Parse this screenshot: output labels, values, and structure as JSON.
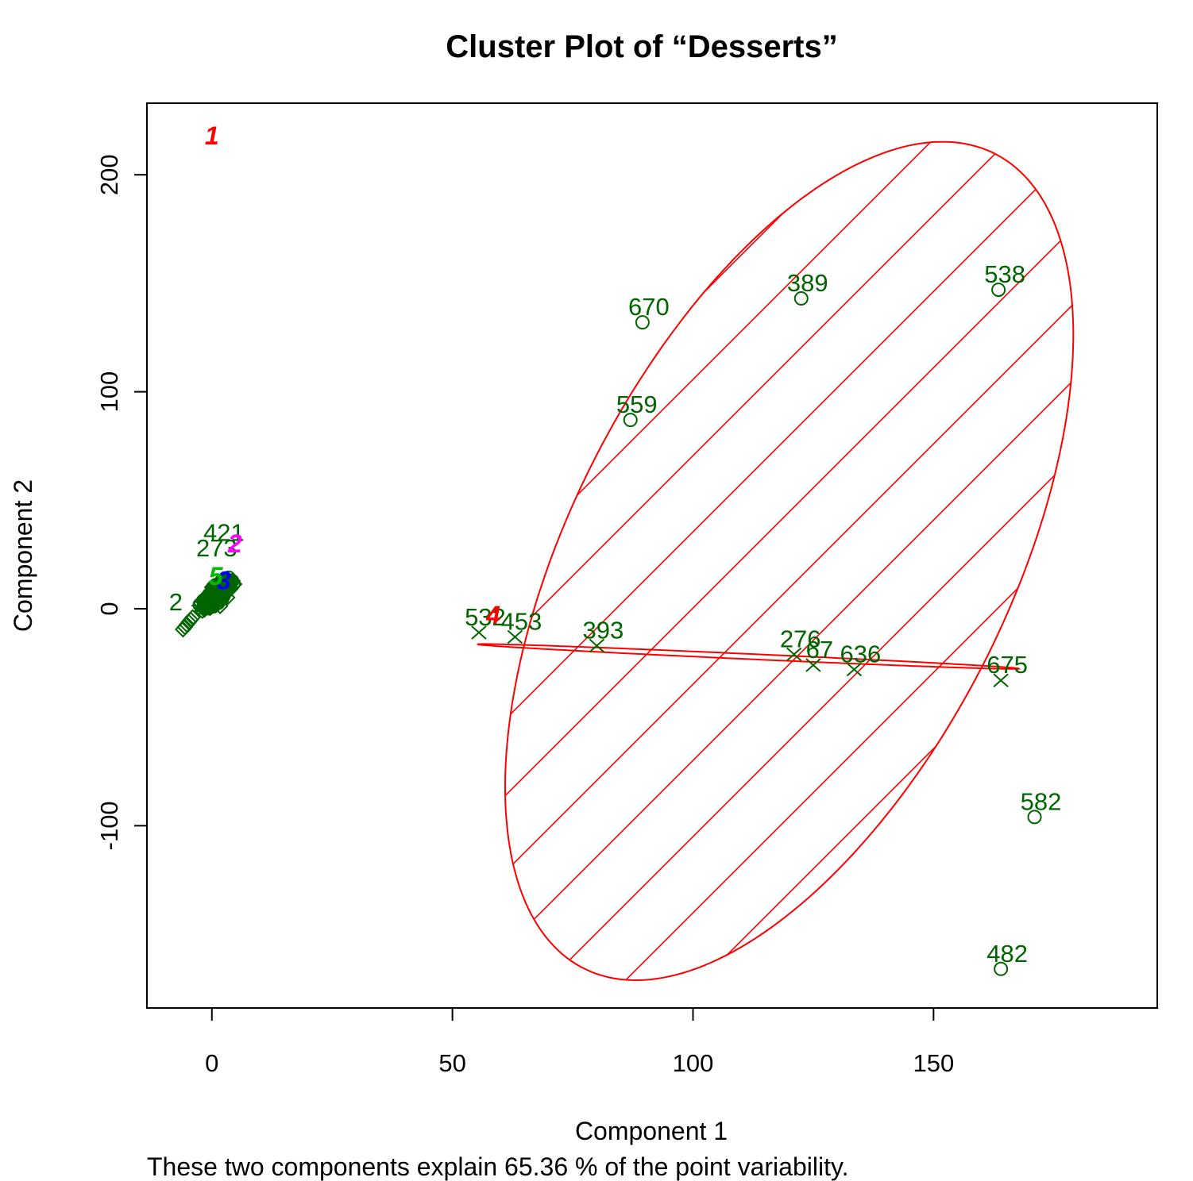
{
  "chart_data": {
    "type": "scatter",
    "title": "Cluster Plot of “Desserts”",
    "xlabel": "Component 1",
    "ylabel": "Component 2",
    "subtitle": "These two components explain 65.36 % of the point variability.",
    "xlim": [
      -13.5,
      196.5
    ],
    "ylim": [
      -184,
      233
    ],
    "xticks": [
      0,
      50,
      100,
      150
    ],
    "yticks": [
      -100,
      0,
      100,
      200
    ],
    "colors": {
      "points": "#006400",
      "cluster1": "#ff0000",
      "cluster2": "#ff00ff",
      "cluster3": "#0000ff",
      "cluster4": "#ff0000",
      "cluster5": "#00bb00",
      "axes": "#000000"
    },
    "points": [
      {
        "label": "670",
        "x": 89.5,
        "y": 132,
        "marker": "circle"
      },
      {
        "label": "389",
        "x": 122.5,
        "y": 143,
        "marker": "circle"
      },
      {
        "label": "538",
        "x": 163.5,
        "y": 147,
        "marker": "circle"
      },
      {
        "label": "559",
        "x": 87,
        "y": 87,
        "marker": "circle"
      },
      {
        "label": "582",
        "x": 171,
        "y": -96,
        "marker": "circle"
      },
      {
        "label": "482",
        "x": 164,
        "y": -166,
        "marker": "circle"
      },
      {
        "label": "532",
        "x": 55.5,
        "y": -11,
        "marker": "x"
      },
      {
        "label": "453",
        "x": 63,
        "y": -13,
        "marker": "x"
      },
      {
        "label": "393",
        "x": 80,
        "y": -17,
        "marker": "x"
      },
      {
        "label": "276",
        "x": 121,
        "y": -21,
        "marker": "x"
      },
      {
        "label": "67",
        "x": 125,
        "y": -26,
        "marker": "x"
      },
      {
        "label": "636",
        "x": 133.5,
        "y": -28,
        "marker": "x"
      },
      {
        "label": "675",
        "x": 164,
        "y": -33,
        "marker": "x"
      }
    ],
    "dense_cluster_labels": [
      {
        "label": "421",
        "x": 2.5,
        "y": 29
      },
      {
        "label": "273",
        "x": 1,
        "y": 22
      },
      {
        "label": "2",
        "x": -7.5,
        "y": -3
      }
    ],
    "clusters": [
      {
        "label": "1",
        "center": [
          120,
          22
        ],
        "semi_major": 196,
        "semi_minor": 49,
        "angle_deg": 80,
        "shaded": true
      },
      {
        "label": "2",
        "center": [
          4.8,
          30
        ],
        "semi_major": 0,
        "semi_minor": 0,
        "angle_deg": 0,
        "shaded": false
      },
      {
        "label": "3",
        "center": [
          2.5,
          13
        ],
        "semi_major": 0,
        "semi_minor": 0,
        "angle_deg": 0,
        "shaded": false
      },
      {
        "label": "4",
        "center": [
          111.5,
          -22
        ],
        "semi_major": 56.5,
        "semi_minor": 1.2,
        "angle_deg": -5.7,
        "shaded": false
      },
      {
        "label": "5",
        "center": [
          0.8,
          15
        ],
        "semi_major": 0,
        "semi_minor": 0,
        "angle_deg": 0,
        "shaded": false
      }
    ]
  }
}
